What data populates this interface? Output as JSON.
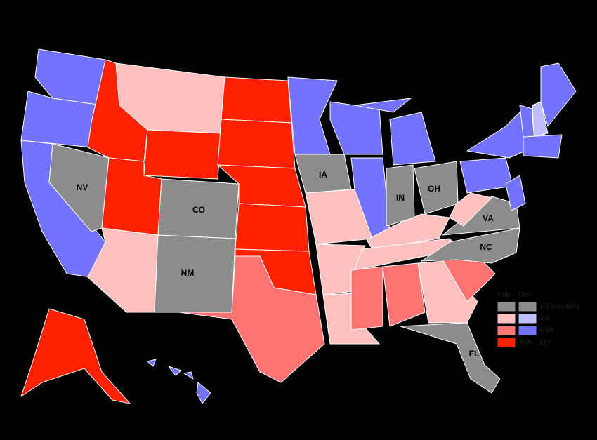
{
  "state_labels": [
    "NV",
    "CO",
    "NM",
    "IA",
    "IN",
    "OH",
    "VA",
    "NC",
    "FL"
  ],
  "legend": {
    "headers": [
      "Rep",
      "Dem"
    ],
    "rows": [
      {
        "label": "1-2 elections"
      },
      {
        "label": "3-5"
      },
      {
        "label": "6-10"
      },
      {
        "label": "11+",
        "dem": "N/A"
      }
    ]
  }
}
